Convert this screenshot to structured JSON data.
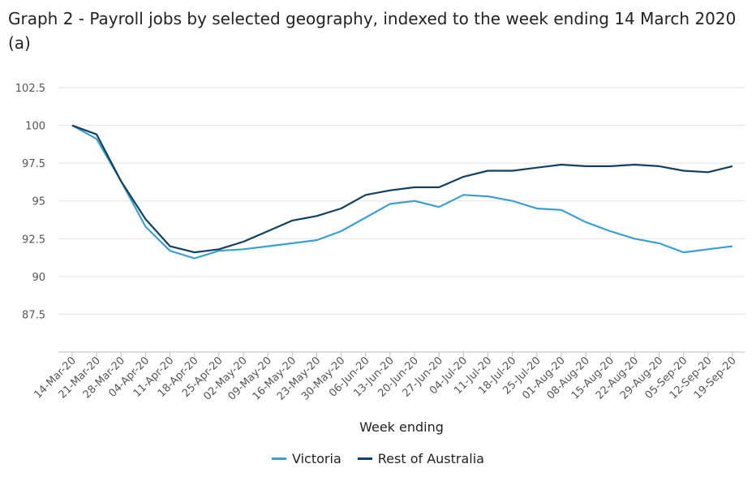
{
  "chart_data": {
    "type": "line",
    "title": "Graph 2 - Payroll jobs by selected geography, indexed to the week ending 14 March 2020 (a)",
    "xlabel": "Week ending",
    "ylabel": "",
    "ylim": [
      85,
      102.5
    ],
    "yticks": [
      "87.5",
      "90",
      "92.5",
      "95",
      "97.5",
      "100",
      "102.5"
    ],
    "grid": true,
    "legend_position": "bottom",
    "x": [
      "14-Mar-20",
      "21-Mar-20",
      "28-Mar-20",
      "04-Apr-20",
      "11-Apr-20",
      "18-Apr-20",
      "25-Apr-20",
      "02-May-20",
      "09-May-20",
      "16-May-20",
      "23-May-20",
      "30-May-20",
      "06-Jun-20",
      "13-Jun-20",
      "20-Jun-20",
      "27-Jun-20",
      "04-Jul-20",
      "11-Jul-20",
      "18-Jul-20",
      "25-Jul-20",
      "01-Aug-20",
      "08-Aug-20",
      "15-Aug-20",
      "22-Aug-20",
      "29-Aug-20",
      "05-Sep-20",
      "12-Sep-20",
      "19-Sep-20"
    ],
    "series": [
      {
        "name": "Victoria",
        "color": "#3a9fd1",
        "values": [
          100,
          99.1,
          96.3,
          93.3,
          91.7,
          91.2,
          91.7,
          91.8,
          92.0,
          92.2,
          92.4,
          93.0,
          93.9,
          94.8,
          95.0,
          94.6,
          95.4,
          95.3,
          95.0,
          94.5,
          94.4,
          93.6,
          93.0,
          92.5,
          92.2,
          91.6,
          91.8,
          92.0
        ]
      },
      {
        "name": "Rest of Australia",
        "color": "#13405f",
        "values": [
          100,
          99.4,
          96.3,
          93.8,
          92.0,
          91.6,
          91.8,
          92.3,
          93.0,
          93.7,
          94.0,
          94.5,
          95.4,
          95.7,
          95.9,
          95.9,
          96.6,
          97.0,
          97.0,
          97.2,
          97.4,
          97.3,
          97.3,
          97.4,
          97.3,
          97.0,
          96.9,
          97.3
        ]
      }
    ]
  }
}
